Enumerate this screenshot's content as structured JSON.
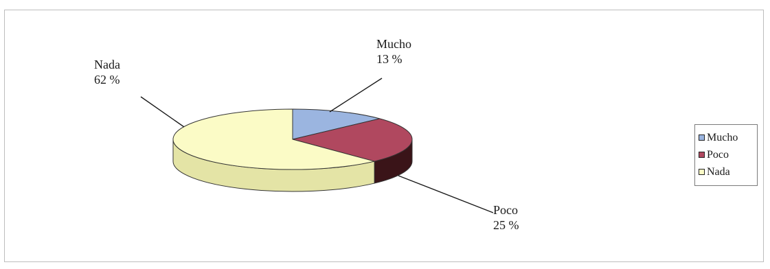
{
  "chart_data": {
    "type": "pie",
    "slices": [
      {
        "label": "Mucho",
        "value": 13,
        "value_text": "13 %",
        "color": "#9bb5e0",
        "side_color": "#4a6694"
      },
      {
        "label": "Poco",
        "value": 25,
        "value_text": "25 %",
        "color": "#b0485f",
        "side_color": "#3a1418"
      },
      {
        "label": "Nada",
        "value": 62,
        "value_text": "62 %",
        "color": "#fbfbc6",
        "side_color": "#e4e4a6"
      }
    ],
    "legend": {
      "placement": "right",
      "items": [
        "Mucho",
        "Poco",
        "Nada"
      ]
    },
    "is_3d": true
  }
}
